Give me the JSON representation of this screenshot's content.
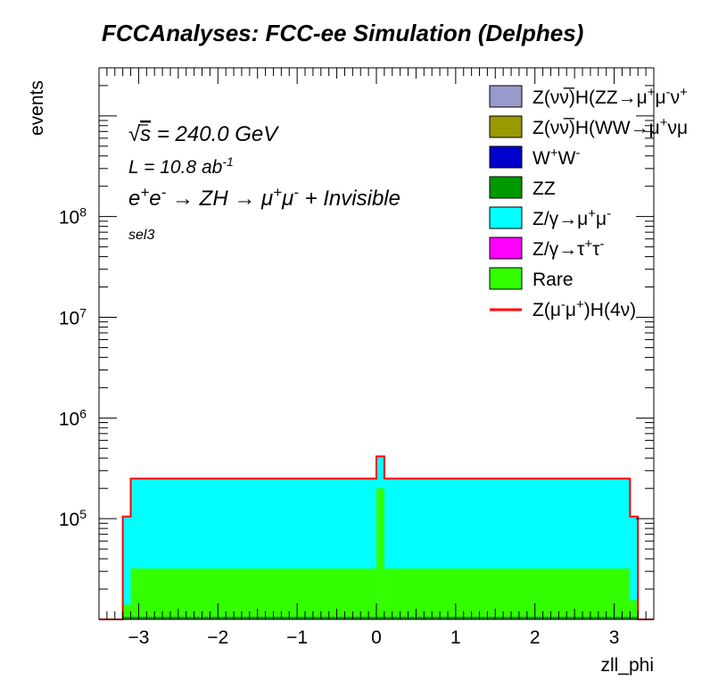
{
  "chart_data": {
    "type": "bar",
    "title": "FCCAnalyses: FCC-ee Simulation (Delphes)",
    "xlabel": "zll_phi",
    "ylabel": "events",
    "y_scale": "log",
    "xlim": [
      -3.5,
      3.5
    ],
    "ylim": [
      10000,
      3000000000
    ],
    "x_ticks": [
      "−3",
      "−2",
      "−1",
      "0",
      "1",
      "2",
      "3"
    ],
    "x_tick_values": [
      -3,
      -2,
      -1,
      0,
      1,
      2,
      3
    ],
    "y_ticks": [
      {
        "value": 100000,
        "base": "10",
        "exp": "5"
      },
      {
        "value": 1000000,
        "base": "10",
        "exp": "6"
      },
      {
        "value": 10000000,
        "base": "10",
        "exp": "7"
      },
      {
        "value": 100000000,
        "base": "10",
        "exp": "8"
      }
    ],
    "annotations": {
      "energy_sqrt": "√",
      "energy_s": "s",
      "energy_rest": " = 240.0 GeV",
      "lumi_main": "L = 10.8 ab",
      "lumi_exp": "-1",
      "process": [
        {
          "t": "e",
          "s": ""
        },
        {
          "t": "+",
          "s": "sup"
        },
        {
          "t": "e",
          "s": ""
        },
        {
          "t": "-",
          "s": "sup"
        },
        {
          "t": " → ZH → μ",
          "s": ""
        },
        {
          "t": "+",
          "s": "sup"
        },
        {
          "t": "μ",
          "s": ""
        },
        {
          "t": "-",
          "s": "sup"
        },
        {
          "t": " + Invisible",
          "s": ""
        }
      ],
      "selection": "sel3"
    },
    "legend_placement": "top-right",
    "legend": [
      {
        "color": "#9999cc",
        "kind": "box",
        "parts": [
          {
            "t": "Z(νν̅)H(ZZ→μ",
            "s": ""
          },
          {
            "t": "+",
            "s": "sup"
          },
          {
            "t": "μ",
            "s": ""
          },
          {
            "t": "-",
            "s": "sup"
          },
          {
            "t": "ν",
            "s": ""
          },
          {
            "t": "+",
            "s": "sup"
          }
        ]
      },
      {
        "color": "#999900",
        "kind": "box",
        "parts": [
          {
            "t": "Z(νν̅)H(WW→μ",
            "s": ""
          },
          {
            "t": "+",
            "s": "sup"
          },
          {
            "t": "νμ",
            "s": ""
          }
        ]
      },
      {
        "color": "#0000cc",
        "kind": "box",
        "parts": [
          {
            "t": "W",
            "s": ""
          },
          {
            "t": "+",
            "s": "sup"
          },
          {
            "t": "W",
            "s": ""
          },
          {
            "t": "-",
            "s": "sup"
          }
        ]
      },
      {
        "color": "#009900",
        "kind": "box",
        "parts": [
          {
            "t": "ZZ",
            "s": ""
          }
        ]
      },
      {
        "color": "#00ffff",
        "kind": "box",
        "parts": [
          {
            "t": "Z/γ→μ",
            "s": ""
          },
          {
            "t": "+",
            "s": "sup"
          },
          {
            "t": "μ",
            "s": ""
          },
          {
            "t": "-",
            "s": "sup"
          }
        ]
      },
      {
        "color": "#ff00ff",
        "kind": "box",
        "parts": [
          {
            "t": "Z/γ→τ",
            "s": ""
          },
          {
            "t": "+",
            "s": "sup"
          },
          {
            "t": "τ",
            "s": ""
          },
          {
            "t": "-",
            "s": "sup"
          }
        ]
      },
      {
        "color": "#33ff00",
        "kind": "box",
        "parts": [
          {
            "t": "Rare",
            "s": ""
          }
        ]
      },
      {
        "color": "#ff0000",
        "kind": "line",
        "parts": [
          {
            "t": "Z(μ",
            "s": ""
          },
          {
            "t": "-",
            "s": "sup"
          },
          {
            "t": "μ",
            "s": ""
          },
          {
            "t": "+",
            "s": "sup"
          },
          {
            "t": ")H(4ν)",
            "s": ""
          }
        ]
      }
    ],
    "bins": {
      "x": [
        -3.5,
        -3.2,
        -3.1,
        0.0,
        0.1,
        3.2,
        3.3,
        3.5
      ],
      "series": [
        {
          "name": "Z/γ→μ+μ-",
          "color": "#00ffff",
          "stack_top": [
            0,
            105000,
            250000,
            415000,
            250000,
            105000,
            0
          ]
        },
        {
          "name": "Rare",
          "color": "#33ff00",
          "stack_top": [
            0,
            14000,
            32000,
            200000,
            32000,
            15500,
            0
          ]
        },
        {
          "name": "ZZ",
          "color": "#009900",
          "stack_top": [
            0,
            10600,
            10600,
            10600,
            10600,
            10600,
            0
          ]
        }
      ],
      "total_line": {
        "name": "Z(μ-μ+)H(4ν)",
        "color": "#ff0000",
        "values": [
          10000,
          105000,
          250000,
          415000,
          250000,
          105000,
          10000
        ]
      }
    }
  }
}
